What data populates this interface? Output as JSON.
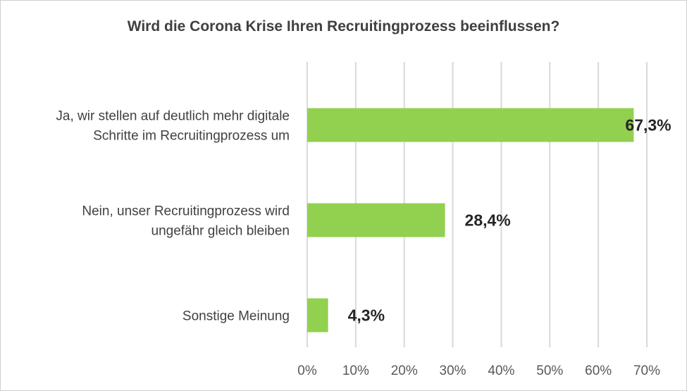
{
  "chart_data": {
    "type": "bar",
    "orientation": "horizontal",
    "title": "Wird die Corona Krise Ihren Recruitingprozess beeinflussen?",
    "categories": [
      [
        "Ja, wir stellen auf deutlich mehr digitale",
        "Schritte im Recruitingprozess um"
      ],
      [
        "Nein, unser Recruitingprozess wird",
        "ungefähr gleich bleiben"
      ],
      [
        "Sonstige Meinung"
      ]
    ],
    "values": [
      67.3,
      28.4,
      4.3
    ],
    "data_labels": [
      "67,3%",
      "28,4%",
      "4,3%"
    ],
    "xlim": [
      0,
      70
    ],
    "x_ticks": [
      0,
      10,
      20,
      30,
      40,
      50,
      60,
      70
    ],
    "x_tick_labels": [
      "0%",
      "10%",
      "20%",
      "30%",
      "40%",
      "50%",
      "60%",
      "70%"
    ],
    "grid": true,
    "bar_color": "#92d050"
  }
}
